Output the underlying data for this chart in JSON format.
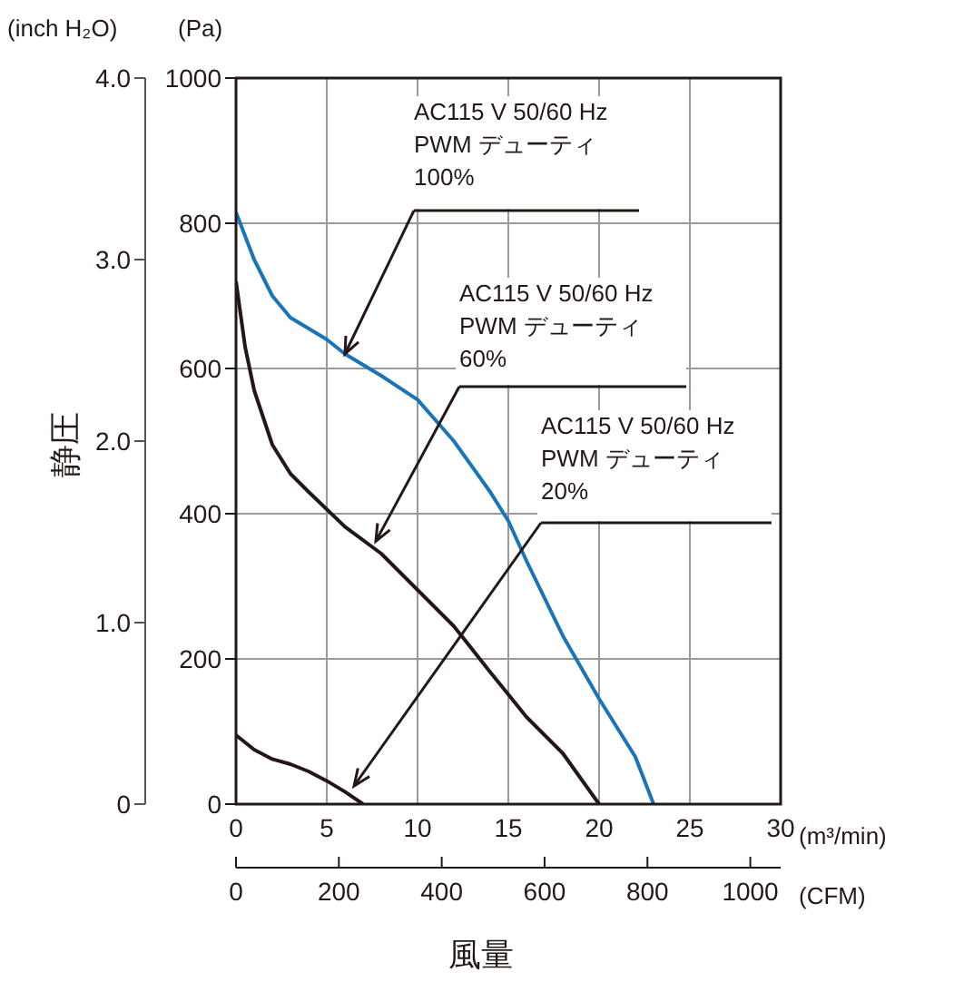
{
  "chart_data": {
    "type": "line",
    "xlabel": "風量",
    "y2label": "静圧",
    "xlim": [
      0,
      30
    ],
    "xticks": [
      0,
      5,
      10,
      15,
      20,
      25,
      30
    ],
    "x2lim": [
      0,
      1059
    ],
    "x2ticks": [
      0,
      200,
      400,
      600,
      800,
      1000
    ],
    "ylim": [
      0,
      1000
    ],
    "yticks": [
      0,
      200,
      400,
      600,
      800,
      1000
    ],
    "y2lim": [
      0,
      4.0
    ],
    "y2ticks": [
      0,
      {
        "value": 1,
        "label": "1.0"
      },
      {
        "value": 2,
        "label": "2.0"
      },
      {
        "value": 3,
        "label": "3.0"
      },
      {
        "value": 4,
        "label": "4.0"
      }
    ],
    "grid": true,
    "marker": "none",
    "line_style": "solid",
    "series": [
      {
        "color": "#1a74b8",
        "x": [
          0,
          1,
          2,
          3,
          4,
          5,
          6,
          8,
          10,
          12,
          14,
          15,
          16,
          18,
          20,
          22,
          23
        ],
        "values": [
          815,
          750,
          700,
          670,
          655,
          640,
          620,
          590,
          557,
          500,
          430,
          390,
          335,
          232,
          145,
          65,
          0
        ]
      },
      {
        "color": "#231815",
        "x": [
          0,
          0.5,
          1,
          2,
          3,
          4,
          6,
          8,
          10,
          12,
          14,
          16,
          18,
          19,
          20
        ],
        "values": [
          720,
          630,
          570,
          495,
          455,
          430,
          382,
          345,
          295,
          245,
          182,
          120,
          70,
          35,
          0
        ]
      },
      {
        "color": "#231815",
        "x": [
          0,
          1,
          2,
          3,
          4,
          5,
          6,
          7
        ],
        "values": [
          95,
          75,
          62,
          55,
          45,
          32,
          17,
          0
        ]
      }
    ],
    "annotations": [
      {
        "text": "AC115 V  50/60 Hz\nPWM デューティ\n100%",
        "x": 6,
        "y": 620
      },
      {
        "text": "AC115 V  50/60 Hz\nPWM デューティ\n60%",
        "x": 7.7,
        "y": 362
      },
      {
        "text": "AC115 V  50/60 Hz\nPWM デューティ\n20%",
        "x": 6.5,
        "y": 25
      },
      "(inch H₂O)",
      "(Pa)",
      "(m³/min)",
      "(CFM)"
    ]
  }
}
